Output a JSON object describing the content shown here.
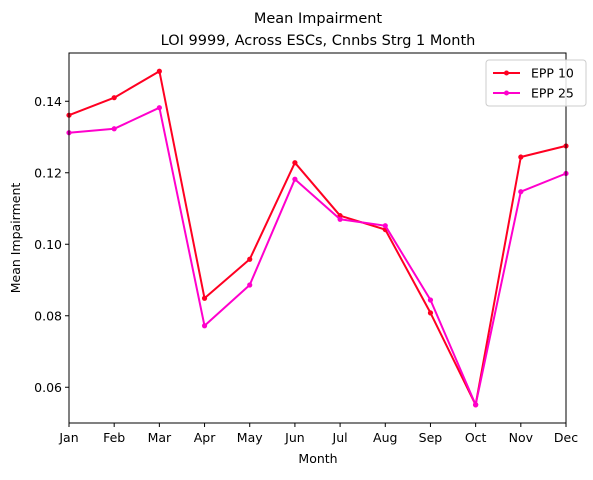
{
  "chart_data": {
    "type": "line",
    "title": "Mean Impairment",
    "subtitle": "LOI 9999, Across ESCs, Cnnbs Strg 1 Month",
    "xlabel": "Month",
    "ylabel": "Mean Impairment",
    "categories": [
      "Jan",
      "Feb",
      "Mar",
      "Apr",
      "May",
      "Jun",
      "Jul",
      "Aug",
      "Sep",
      "Oct",
      "Nov",
      "Dec"
    ],
    "ylim": [
      0.05,
      0.1535
    ],
    "yticks": [
      "0.06",
      "0.08",
      "0.10",
      "0.12",
      "0.14"
    ],
    "grid": false,
    "legend_position": "upper right",
    "series": [
      {
        "name": "EPP 10",
        "color": "#ff0022",
        "values": [
          0.1361,
          0.141,
          0.1484,
          0.0849,
          0.0958,
          0.1228,
          0.108,
          0.1041,
          0.0808,
          0.0551,
          0.1244,
          0.1275
        ]
      },
      {
        "name": "EPP 25",
        "color": "#ff00cc",
        "values": [
          0.1312,
          0.1323,
          0.1382,
          0.0772,
          0.0886,
          0.1182,
          0.107,
          0.1052,
          0.0844,
          0.0551,
          0.1147,
          0.1198
        ]
      }
    ]
  }
}
